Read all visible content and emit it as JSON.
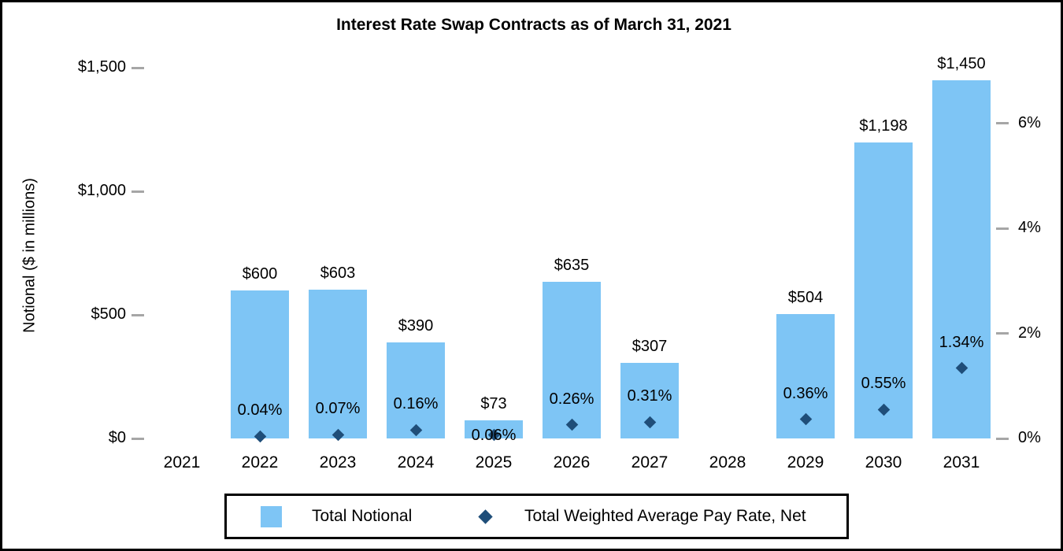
{
  "chart_data": {
    "type": "bar",
    "subtype": "combo-bar-with-scatter-diamonds",
    "title": "Interest Rate Swap Contracts as of March 31, 2021",
    "ylabel_left": "Notional ($ in millions)",
    "ylabel_right": "",
    "xlabel": "",
    "grid": false,
    "legend_position": "bottom",
    "colors": {
      "bar_fill": "#7EC5F5",
      "marker_fill": "#1F4E79",
      "tick_mark": "#A6A6A6",
      "text": "#000000",
      "border": "#000000"
    },
    "left_axis": {
      "range": [
        0,
        1500
      ],
      "ticks": [
        {
          "value": 0,
          "label": "$0"
        },
        {
          "value": 500,
          "label": "$500"
        },
        {
          "value": 1000,
          "label": "$1,000"
        },
        {
          "value": 1500,
          "label": "$1,500"
        }
      ]
    },
    "right_axis": {
      "range": [
        0,
        6
      ],
      "ticks": [
        {
          "value": 0,
          "label": "0%"
        },
        {
          "value": 2,
          "label": "2%"
        },
        {
          "value": 4,
          "label": "4%"
        },
        {
          "value": 6,
          "label": "6%"
        }
      ]
    },
    "categories": [
      "2021",
      "2022",
      "2023",
      "2024",
      "2025",
      "2026",
      "2027",
      "2028",
      "2029",
      "2030",
      "2031"
    ],
    "series": [
      {
        "name": "Total Notional",
        "type": "bar",
        "values": [
          null,
          600,
          603,
          390,
          73,
          635,
          307,
          null,
          504,
          1198,
          1450
        ],
        "labels": [
          "",
          "$600",
          "$603",
          "$390",
          "$73",
          "$635",
          "$307",
          "",
          "$504",
          "$1,198",
          "$1,450"
        ]
      },
      {
        "name": "Total Weighted Average Pay Rate, Net",
        "type": "scatter",
        "marker": "diamond",
        "values": [
          null,
          0.04,
          0.07,
          0.16,
          0.06,
          0.26,
          0.31,
          null,
          0.36,
          0.55,
          1.34
        ],
        "labels": [
          "",
          "0.04%",
          "0.07%",
          "0.16%",
          "0.06%",
          "0.26%",
          "0.31%",
          "",
          "0.36%",
          "0.55%",
          "1.34%"
        ],
        "label_positions": [
          "above",
          "above",
          "above",
          "above",
          "on-marker",
          "above",
          "above",
          "above",
          "above",
          "above",
          "above"
        ]
      }
    ]
  }
}
